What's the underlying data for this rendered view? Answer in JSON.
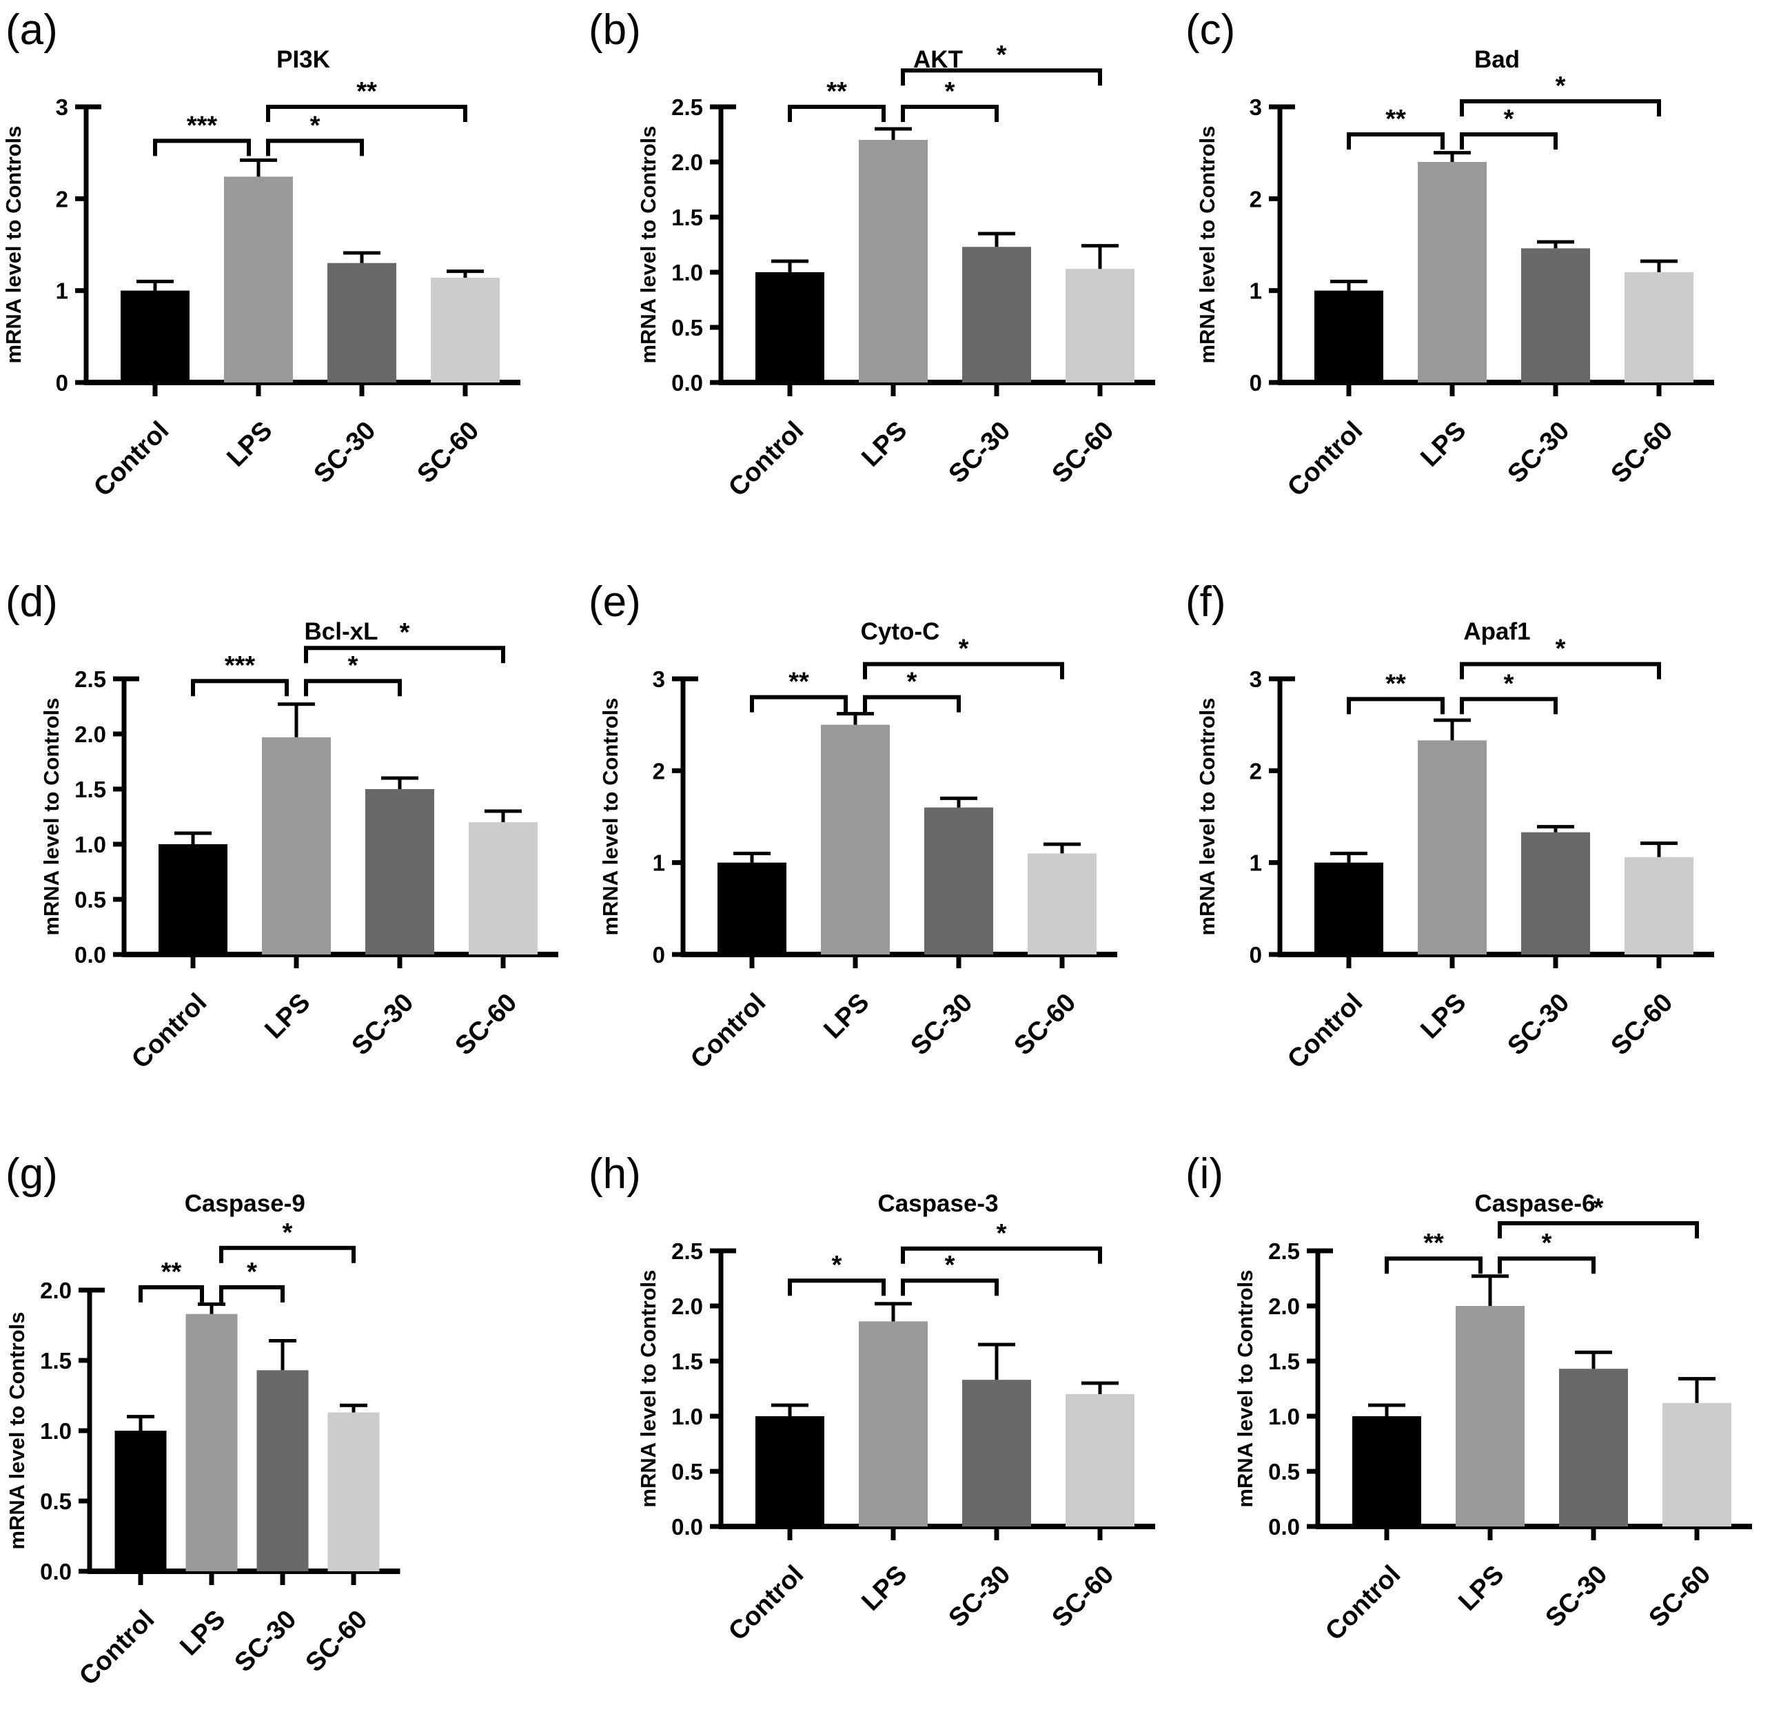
{
  "chart_data": [
    {
      "type": "bar",
      "panel_letter": "(a)",
      "title": "PI3K",
      "ylabel": "mRNA level to Controls",
      "categories": [
        "Control",
        "LPS",
        "SC-30",
        "SC-60"
      ],
      "values": [
        1.0,
        2.24,
        1.3,
        1.14
      ],
      "errors": [
        0.1,
        0.18,
        0.11,
        0.07
      ],
      "bar_colors": [
        "#000000",
        "#999999",
        "#696969",
        "#cccccc"
      ],
      "ylim": [
        0,
        3
      ],
      "yticks": [
        0,
        1,
        2,
        3
      ],
      "ytick_labels": [
        "0",
        "1",
        "2",
        "3"
      ],
      "grid": false,
      "legend": "none",
      "significance": [
        {
          "groups": [
            "Control",
            "LPS"
          ],
          "label": "***",
          "y": 2.63
        },
        {
          "groups": [
            "LPS",
            "SC-30"
          ],
          "label": "*",
          "y": 2.63
        },
        {
          "groups": [
            "LPS",
            "SC-60"
          ],
          "label": "**",
          "y": 3.0
        }
      ]
    },
    {
      "type": "bar",
      "panel_letter": "(b)",
      "title": "AKT",
      "ylabel": "mRNA level to Controls",
      "categories": [
        "Control",
        "LPS",
        "SC-30",
        "SC-60"
      ],
      "values": [
        1.0,
        2.2,
        1.23,
        1.03
      ],
      "errors": [
        0.1,
        0.1,
        0.12,
        0.21
      ],
      "bar_colors": [
        "#000000",
        "#999999",
        "#696969",
        "#cccccc"
      ],
      "ylim": [
        0,
        2.5
      ],
      "yticks": [
        0,
        0.5,
        1,
        1.5,
        2,
        2.5
      ],
      "ytick_labels": [
        "0.0",
        "0.5",
        "1.0",
        "1.5",
        "2.0",
        "2.5"
      ],
      "grid": false,
      "legend": "none",
      "significance": [
        {
          "groups": [
            "Control",
            "LPS"
          ],
          "label": "**",
          "y": 2.5
        },
        {
          "groups": [
            "LPS",
            "SC-30"
          ],
          "label": "*",
          "y": 2.5
        },
        {
          "groups": [
            "LPS",
            "SC-60"
          ],
          "label": "*",
          "y": 2.83
        }
      ]
    },
    {
      "type": "bar",
      "panel_letter": "(c)",
      "title": "Bad",
      "ylabel": "mRNA level to Controls",
      "categories": [
        "Control",
        "LPS",
        "SC-30",
        "SC-60"
      ],
      "values": [
        1.0,
        2.4,
        1.46,
        1.2
      ],
      "errors": [
        0.1,
        0.1,
        0.07,
        0.12
      ],
      "bar_colors": [
        "#000000",
        "#999999",
        "#696969",
        "#cccccc"
      ],
      "ylim": [
        0,
        3
      ],
      "yticks": [
        0,
        1,
        2,
        3
      ],
      "ytick_labels": [
        "0",
        "1",
        "2",
        "3"
      ],
      "grid": false,
      "legend": "none",
      "significance": [
        {
          "groups": [
            "Control",
            "LPS"
          ],
          "label": "**",
          "y": 2.7
        },
        {
          "groups": [
            "LPS",
            "SC-30"
          ],
          "label": "*",
          "y": 2.7
        },
        {
          "groups": [
            "LPS",
            "SC-60"
          ],
          "label": "*",
          "y": 3.06
        }
      ]
    },
    {
      "type": "bar",
      "panel_letter": "(d)",
      "title": "Bcl-xL",
      "ylabel": "mRNA level to Controls",
      "categories": [
        "Control",
        "LPS",
        "SC-30",
        "SC-60"
      ],
      "values": [
        1.0,
        1.97,
        1.5,
        1.2
      ],
      "errors": [
        0.1,
        0.3,
        0.1,
        0.1
      ],
      "bar_colors": [
        "#000000",
        "#999999",
        "#696969",
        "#cccccc"
      ],
      "ylim": [
        0,
        2.5
      ],
      "yticks": [
        0,
        0.5,
        1,
        1.5,
        2,
        2.5
      ],
      "ytick_labels": [
        "0.0",
        "0.5",
        "1.0",
        "1.5",
        "2.0",
        "2.5"
      ],
      "grid": false,
      "legend": "none",
      "significance": [
        {
          "groups": [
            "Control",
            "LPS"
          ],
          "label": "***",
          "y": 2.48
        },
        {
          "groups": [
            "LPS",
            "SC-30"
          ],
          "label": "*",
          "y": 2.48
        },
        {
          "groups": [
            "LPS",
            "SC-60"
          ],
          "label": "*",
          "y": 2.78
        }
      ]
    },
    {
      "type": "bar",
      "panel_letter": "(e)",
      "title": "Cyto-C",
      "ylabel": "mRNA level to Controls",
      "categories": [
        "Control",
        "LPS",
        "SC-30",
        "SC-60"
      ],
      "values": [
        1.0,
        2.5,
        1.6,
        1.1
      ],
      "errors": [
        0.1,
        0.12,
        0.1,
        0.1
      ],
      "bar_colors": [
        "#000000",
        "#999999",
        "#696969",
        "#cccccc"
      ],
      "ylim": [
        0,
        3
      ],
      "yticks": [
        0,
        1,
        2,
        3
      ],
      "ytick_labels": [
        "0",
        "1",
        "2",
        "3"
      ],
      "grid": false,
      "legend": "none",
      "significance": [
        {
          "groups": [
            "Control",
            "LPS"
          ],
          "label": "**",
          "y": 2.8
        },
        {
          "groups": [
            "LPS",
            "SC-30"
          ],
          "label": "*",
          "y": 2.8
        },
        {
          "groups": [
            "LPS",
            "SC-60"
          ],
          "label": "*",
          "y": 3.16
        }
      ]
    },
    {
      "type": "bar",
      "panel_letter": "(f)",
      "title": "Apaf1",
      "ylabel": "mRNA level to Controls",
      "categories": [
        "Control",
        "LPS",
        "SC-30",
        "SC-60"
      ],
      "values": [
        1.0,
        2.33,
        1.33,
        1.06
      ],
      "errors": [
        0.1,
        0.22,
        0.06,
        0.15
      ],
      "bar_colors": [
        "#000000",
        "#999999",
        "#696969",
        "#cccccc"
      ],
      "ylim": [
        0,
        3
      ],
      "yticks": [
        0,
        1,
        2,
        3
      ],
      "ytick_labels": [
        "0",
        "1",
        "2",
        "3"
      ],
      "grid": false,
      "legend": "none",
      "significance": [
        {
          "groups": [
            "Control",
            "LPS"
          ],
          "label": "**",
          "y": 2.78
        },
        {
          "groups": [
            "LPS",
            "SC-30"
          ],
          "label": "*",
          "y": 2.78
        },
        {
          "groups": [
            "LPS",
            "SC-60"
          ],
          "label": "*",
          "y": 3.16
        }
      ]
    },
    {
      "type": "bar",
      "panel_letter": "(g)",
      "title": "Caspase-9",
      "ylabel": "mRNA level to Controls",
      "categories": [
        "Control",
        "LPS",
        "SC-30",
        "SC-60"
      ],
      "values": [
        1.0,
        1.83,
        1.43,
        1.13
      ],
      "errors": [
        0.1,
        0.07,
        0.21,
        0.05
      ],
      "bar_colors": [
        "#000000",
        "#999999",
        "#696969",
        "#cccccc"
      ],
      "ylim": [
        0,
        2
      ],
      "yticks": [
        0,
        0.5,
        1,
        1.5,
        2
      ],
      "ytick_labels": [
        "0.0",
        "0.5",
        "1.0",
        "1.5",
        "2.0"
      ],
      "grid": false,
      "legend": "none",
      "significance": [
        {
          "groups": [
            "Control",
            "LPS"
          ],
          "label": "**",
          "y": 2.02
        },
        {
          "groups": [
            "LPS",
            "SC-30"
          ],
          "label": "*",
          "y": 2.02
        },
        {
          "groups": [
            "LPS",
            "SC-60"
          ],
          "label": "*",
          "y": 2.3
        }
      ]
    },
    {
      "type": "bar",
      "panel_letter": "(h)",
      "title": "Caspase-3",
      "ylabel": "mRNA level to Controls",
      "categories": [
        "Control",
        "LPS",
        "SC-30",
        "SC-60"
      ],
      "values": [
        1.0,
        1.86,
        1.33,
        1.2
      ],
      "errors": [
        0.1,
        0.16,
        0.32,
        0.1
      ],
      "bar_colors": [
        "#000000",
        "#999999",
        "#696969",
        "#cccccc"
      ],
      "ylim": [
        0,
        2.5
      ],
      "yticks": [
        0,
        0.5,
        1,
        1.5,
        2,
        2.5
      ],
      "ytick_labels": [
        "0.0",
        "0.5",
        "1.0",
        "1.5",
        "2.0",
        "2.5"
      ],
      "grid": false,
      "legend": "none",
      "significance": [
        {
          "groups": [
            "Control",
            "LPS"
          ],
          "label": "*",
          "y": 2.23
        },
        {
          "groups": [
            "LPS",
            "SC-30"
          ],
          "label": "*",
          "y": 2.23
        },
        {
          "groups": [
            "LPS",
            "SC-60"
          ],
          "label": "*",
          "y": 2.52
        }
      ]
    },
    {
      "type": "bar",
      "panel_letter": "(i)",
      "title": "Caspase-6",
      "ylabel": "mRNA level to Controls",
      "categories": [
        "Control",
        "LPS",
        "SC-30",
        "SC-60"
      ],
      "values": [
        1.0,
        2.0,
        1.43,
        1.12
      ],
      "errors": [
        0.1,
        0.27,
        0.15,
        0.22
      ],
      "bar_colors": [
        "#000000",
        "#999999",
        "#696969",
        "#cccccc"
      ],
      "ylim": [
        0,
        2.5
      ],
      "yticks": [
        0,
        0.5,
        1,
        1.5,
        2,
        2.5
      ],
      "ytick_labels": [
        "0.0",
        "0.5",
        "1.0",
        "1.5",
        "2.0",
        "2.5"
      ],
      "grid": false,
      "legend": "none",
      "significance": [
        {
          "groups": [
            "Control",
            "LPS"
          ],
          "label": "**",
          "y": 2.43
        },
        {
          "groups": [
            "LPS",
            "SC-30"
          ],
          "label": "*",
          "y": 2.43
        },
        {
          "groups": [
            "LPS",
            "SC-60"
          ],
          "label": "*",
          "y": 2.75
        }
      ]
    }
  ]
}
